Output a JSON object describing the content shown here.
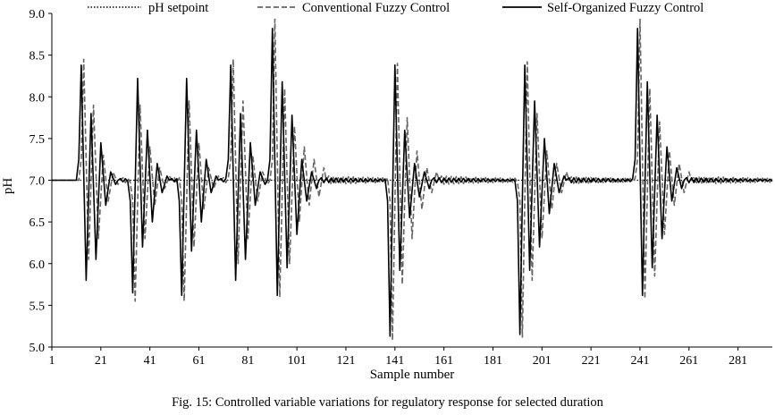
{
  "caption": "Fig. 15: Controlled variable variations for regulatory response for selected duration",
  "chart_data": {
    "type": "line",
    "xlabel": "Sample number",
    "ylabel": "pH",
    "xlim": [
      1,
      295
    ],
    "ylim": [
      5.0,
      9.0
    ],
    "x_ticks": [
      1,
      21,
      41,
      61,
      81,
      101,
      121,
      141,
      161,
      181,
      201,
      221,
      241,
      261,
      281
    ],
    "y_ticks": [
      5.0,
      5.5,
      6.0,
      6.5,
      7.0,
      7.5,
      8.0,
      8.5,
      9.0
    ],
    "y_tick_labels": [
      "5.0",
      "5.5",
      "6.0",
      "6.5",
      "7.0",
      "7.5",
      "8.0",
      "8.5",
      "9.0"
    ],
    "grid": false,
    "legend_position": "top",
    "setpoint": 7.0,
    "series": [
      {
        "name": "pH setpoint",
        "style": "dotted",
        "color": "#000000",
        "x": [
          1,
          295
        ],
        "y": [
          7.0,
          7.0
        ]
      },
      {
        "name": "Conventional Fuzzy Control",
        "style": "dashed",
        "color": "#666666",
        "disturbances": [
          {
            "start": 13,
            "dir": 1,
            "peaks": [
              8.45,
              6.05,
              7.9,
              6.3,
              7.3,
              6.75,
              7.1,
              6.95
            ],
            "tail": 0.03,
            "period": 2
          },
          {
            "start": 34,
            "dir": -1,
            "peaks": [
              5.55,
              7.9,
              6.3,
              7.4,
              6.7,
              7.15,
              6.9,
              7.05
            ],
            "tail": 0.03,
            "period": 2
          },
          {
            "start": 54,
            "dir": -1,
            "peaks": [
              5.55,
              7.95,
              6.2,
              7.45,
              6.65,
              7.15,
              6.9,
              7.05
            ],
            "tail": 0.03,
            "period": 2
          },
          {
            "start": 74,
            "dir": 1,
            "peaks": [
              8.45,
              6.0,
              7.95,
              6.3,
              7.3,
              6.75,
              7.1,
              6.95
            ],
            "tail": 0.03,
            "period": 2
          },
          {
            "start": 91,
            "dir": 1,
            "peaks": [
              8.93,
              5.6,
              8.1,
              6.0,
              7.65,
              6.5,
              7.4,
              6.7,
              7.25,
              6.8,
              7.15
            ],
            "tail": 0.05,
            "period": 2
          },
          {
            "start": 139,
            "dir": -1,
            "peaks": [
              5.08,
              8.4,
              5.75,
              7.75,
              6.3,
              7.35,
              6.65,
              7.15,
              6.85,
              7.1
            ],
            "tail": 0.05,
            "period": 2
          },
          {
            "start": 192,
            "dir": -1,
            "peaks": [
              5.12,
              8.42,
              5.8,
              7.8,
              6.3,
              7.35,
              6.65,
              7.2,
              6.85,
              7.1
            ],
            "tail": 0.04,
            "period": 2
          },
          {
            "start": 240,
            "dir": 1,
            "peaks": [
              8.93,
              5.58,
              8.1,
              5.85,
              7.7,
              6.35,
              7.35,
              6.7,
              7.2,
              6.85,
              7.1
            ],
            "tail": 0.05,
            "period": 2
          }
        ]
      },
      {
        "name": "Self-Organized Fuzzy Control",
        "style": "solid",
        "color": "#000000",
        "disturbances": [
          {
            "start": 12,
            "dir": 1,
            "peaks": [
              8.38,
              5.8,
              7.8,
              6.05,
              7.45,
              6.7,
              7.1,
              6.95
            ],
            "tail": 0.02,
            "period": 2
          },
          {
            "start": 33,
            "dir": -1,
            "peaks": [
              5.65,
              8.22,
              6.2,
              7.6,
              6.5,
              7.2,
              6.85,
              7.05
            ],
            "tail": 0.02,
            "period": 2
          },
          {
            "start": 53,
            "dir": -1,
            "peaks": [
              5.62,
              8.22,
              6.15,
              7.6,
              6.5,
              7.25,
              6.85,
              7.05
            ],
            "tail": 0.02,
            "period": 2
          },
          {
            "start": 73,
            "dir": 1,
            "peaks": [
              8.38,
              5.8,
              7.8,
              6.05,
              7.45,
              6.7,
              7.1,
              6.95
            ],
            "tail": 0.02,
            "period": 2
          },
          {
            "start": 90,
            "dir": 1,
            "peaks": [
              8.82,
              5.62,
              8.18,
              5.95,
              7.78,
              6.35,
              7.25,
              6.75,
              7.1,
              6.9
            ],
            "tail": 0.03,
            "period": 2
          },
          {
            "start": 138,
            "dir": -1,
            "peaks": [
              5.13,
              8.38,
              5.92,
              7.6,
              6.55,
              7.2,
              6.8,
              7.1,
              6.9
            ],
            "tail": 0.03,
            "period": 2
          },
          {
            "start": 191,
            "dir": -1,
            "peaks": [
              5.15,
              8.38,
              5.92,
              7.95,
              6.2,
              7.5,
              6.6,
              7.2,
              6.85,
              7.05
            ],
            "tail": 0.03,
            "period": 2
          },
          {
            "start": 239,
            "dir": 1,
            "peaks": [
              8.82,
              5.62,
              8.18,
              5.95,
              7.78,
              6.3,
              7.4,
              6.75,
              7.15,
              6.9
            ],
            "tail": 0.03,
            "period": 2
          }
        ]
      }
    ]
  }
}
